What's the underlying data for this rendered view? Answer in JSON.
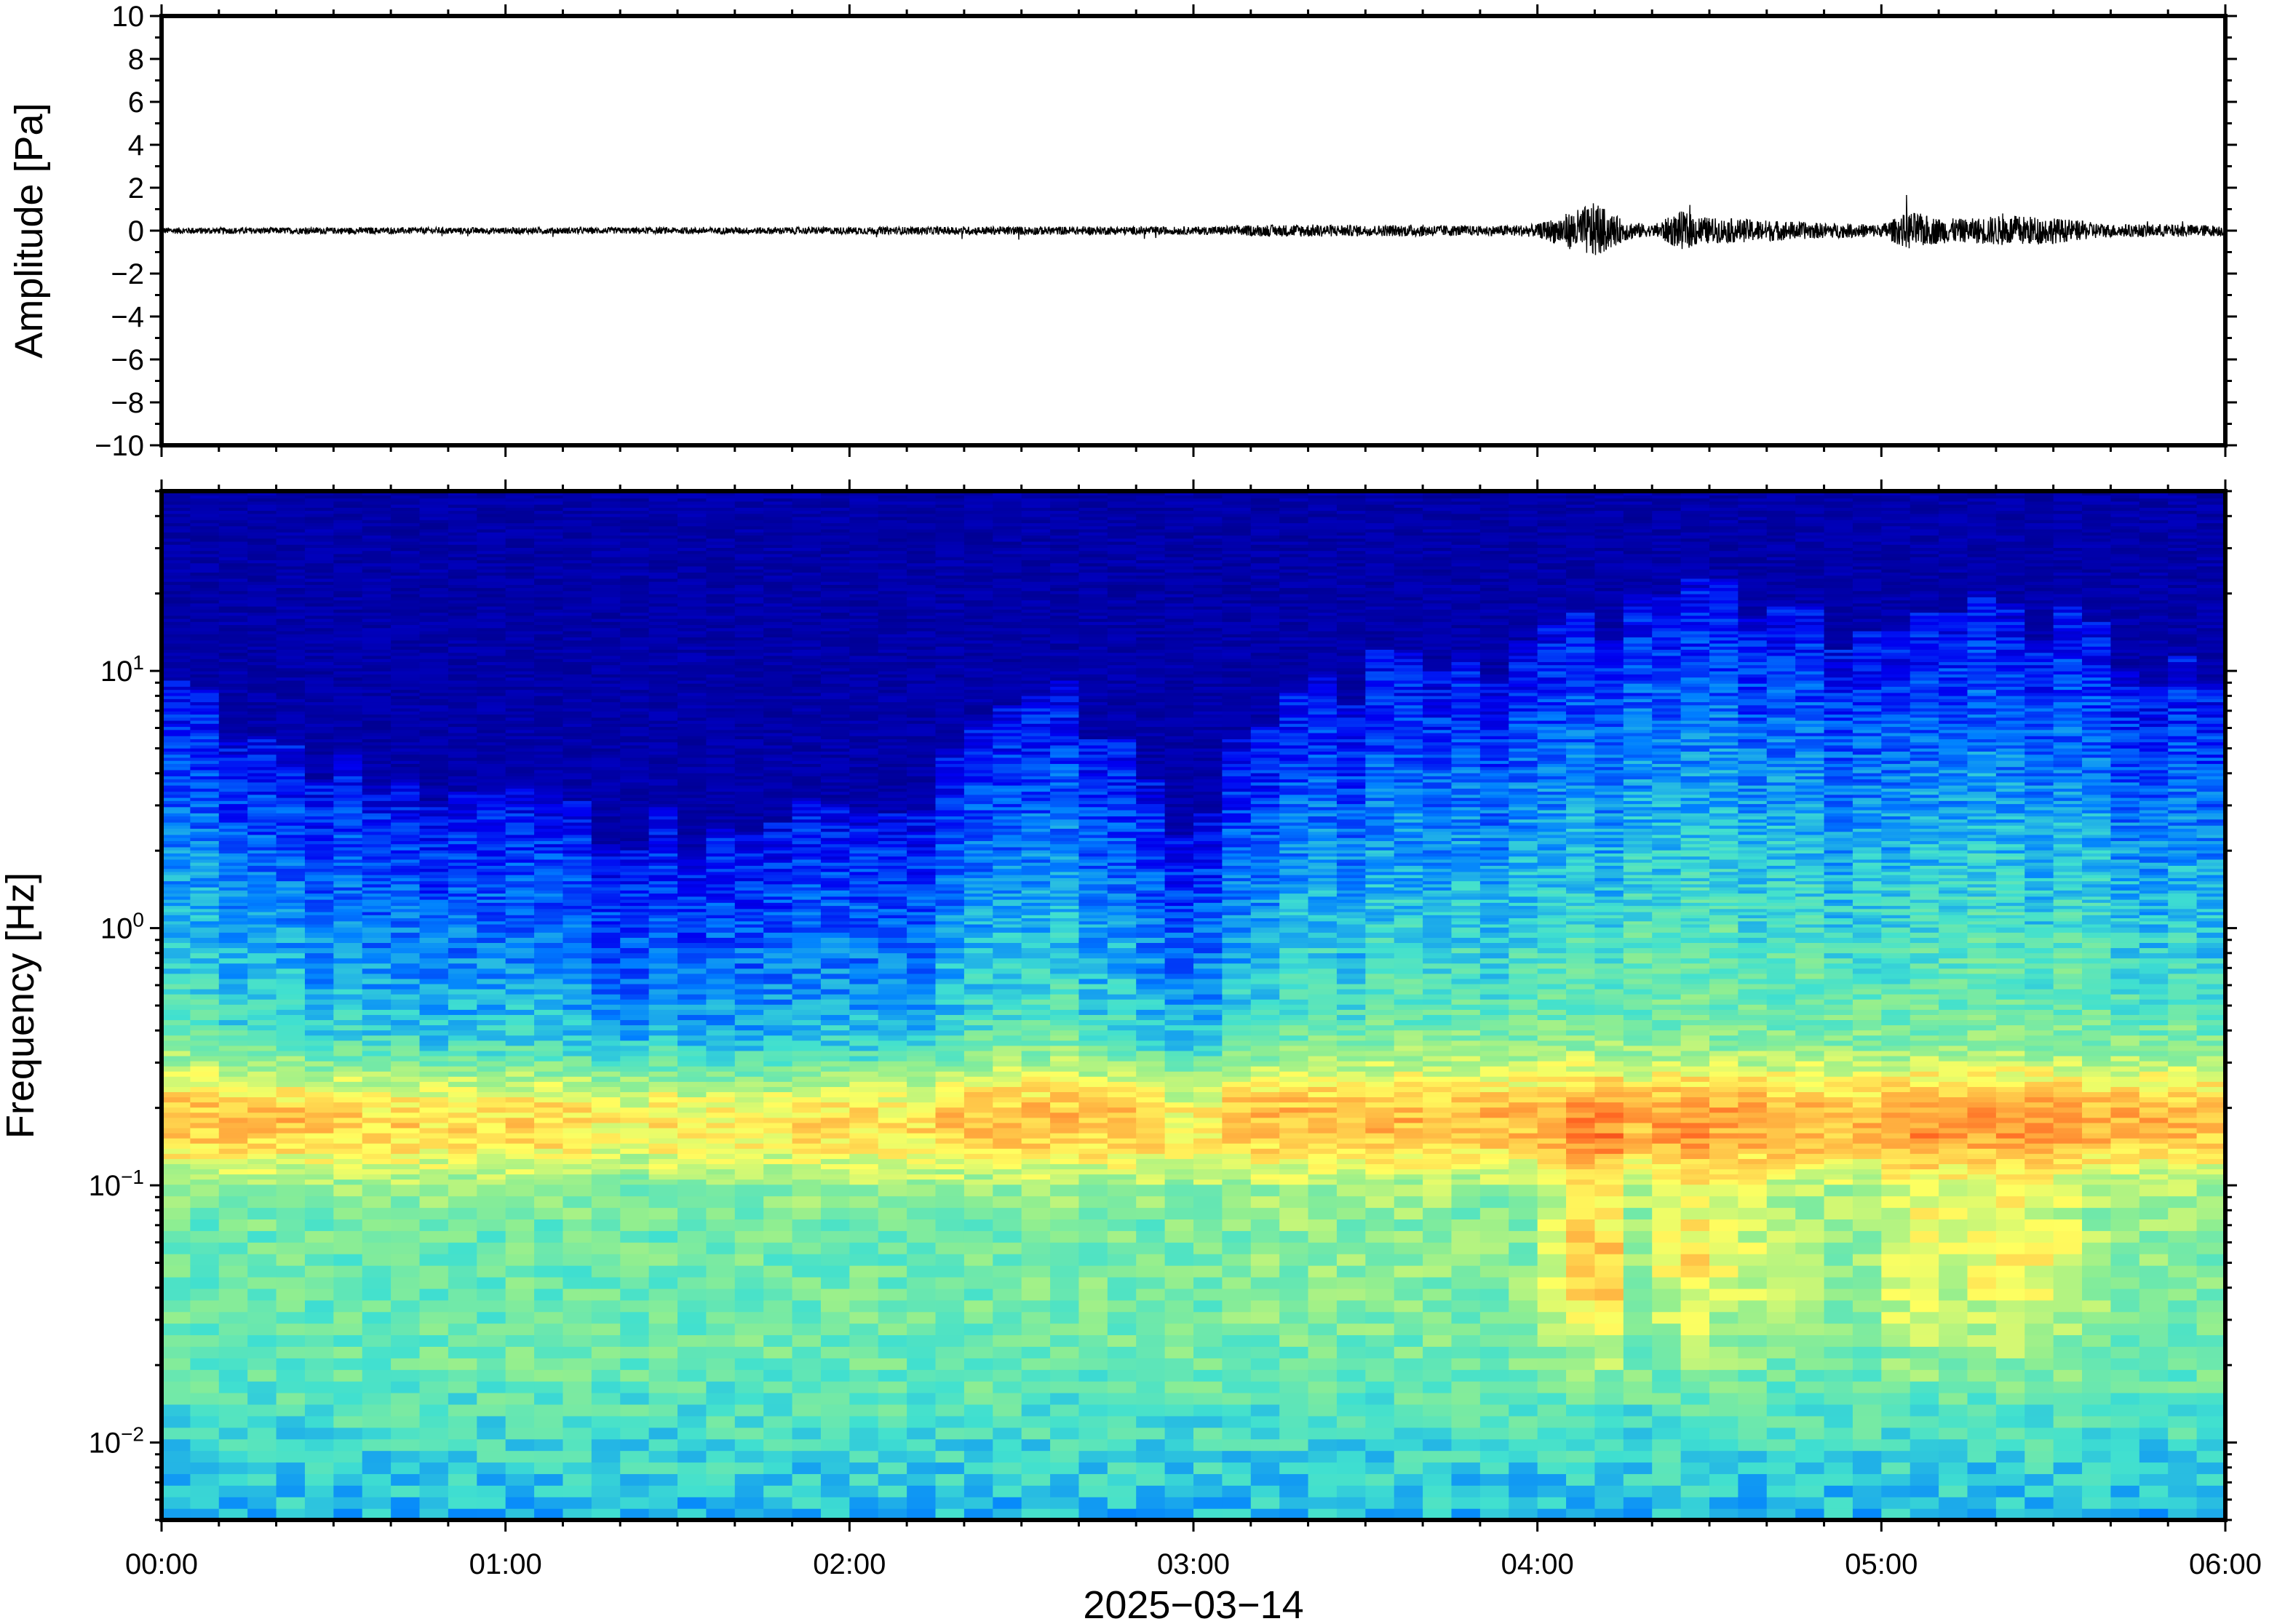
{
  "chart_data": [
    {
      "type": "line",
      "ylabel": "Amplitude [Pa]",
      "ylim": [
        -10,
        10
      ],
      "yticks": [
        10,
        8,
        6,
        4,
        2,
        0,
        -2,
        -4,
        -6,
        -8,
        -10
      ],
      "ytick_labels": [
        "10",
        "8",
        "6",
        "4",
        "2",
        "0",
        "−2",
        "−4",
        "−6",
        "−8",
        "−10"
      ],
      "xlim": [
        "2025-03-14 00:00",
        "2025-03-14 06:00"
      ],
      "series_color": "#000000",
      "envelope": {
        "time": [
          "00:00",
          "00:30",
          "01:00",
          "01:30",
          "02:00",
          "02:30",
          "03:00",
          "03:10",
          "03:20",
          "03:30",
          "03:40",
          "03:50",
          "04:00",
          "04:05",
          "04:10",
          "04:15",
          "04:20",
          "04:25",
          "04:30",
          "04:40",
          "04:50",
          "05:00",
          "05:05",
          "05:10",
          "05:15",
          "05:20",
          "05:25",
          "05:30",
          "05:40",
          "05:50",
          "06:00"
        ],
        "amplitude_pa": [
          0.15,
          0.15,
          0.15,
          0.15,
          0.17,
          0.2,
          0.18,
          0.25,
          0.3,
          0.25,
          0.28,
          0.22,
          0.3,
          0.8,
          1.3,
          0.5,
          0.25,
          0.9,
          0.6,
          0.5,
          0.35,
          0.3,
          0.9,
          0.6,
          0.55,
          0.7,
          0.7,
          0.6,
          0.3,
          0.3,
          0.25
        ]
      }
    },
    {
      "type": "heatmap",
      "ylabel": "Frequency [Hz]",
      "xlabel": "2025−03−14",
      "yscale": "log",
      "ylim_hz": [
        0.005,
        50
      ],
      "yticks": [
        0.01,
        0.1,
        1,
        10
      ],
      "ytick_labels": [
        {
          "base": "10",
          "exp": "−2"
        },
        {
          "base": "10",
          "exp": "−1"
        },
        {
          "base": "10",
          "exp": "0"
        },
        {
          "base": "10",
          "exp": "1"
        }
      ],
      "xticks": [
        "00:00",
        "01:00",
        "02:00",
        "03:00",
        "04:00",
        "05:00",
        "06:00"
      ],
      "xtick_labels": [
        "00:00",
        "01:00",
        "02:00",
        "03:00",
        "04:00",
        "05:00",
        "06:00"
      ],
      "colormap": [
        "#000080",
        "#0000f0",
        "#0080ff",
        "#40e0d0",
        "#90ee90",
        "#ffff60",
        "#ffb040",
        "#ff6020",
        "#c00000"
      ],
      "colormap_meaning": "relative power, low to high",
      "upper_cutoff_time": [
        "00:00",
        "00:15",
        "00:30",
        "01:00",
        "01:30",
        "02:00",
        "02:15",
        "02:30",
        "02:45",
        "03:00",
        "03:15",
        "03:30",
        "03:45",
        "04:00",
        "04:15",
        "04:30",
        "04:45",
        "05:00",
        "05:15",
        "05:30",
        "05:45",
        "06:00"
      ],
      "upper_cutoff_hz": [
        8,
        6,
        4,
        3,
        2.5,
        3,
        4,
        8,
        7,
        1.2,
        8,
        10,
        10,
        12,
        18,
        20,
        16,
        14,
        18,
        15,
        12,
        10
      ],
      "dominant_band_hz": [
        0.12,
        0.28
      ],
      "dominant_band_peak_hz": 0.18
    }
  ]
}
